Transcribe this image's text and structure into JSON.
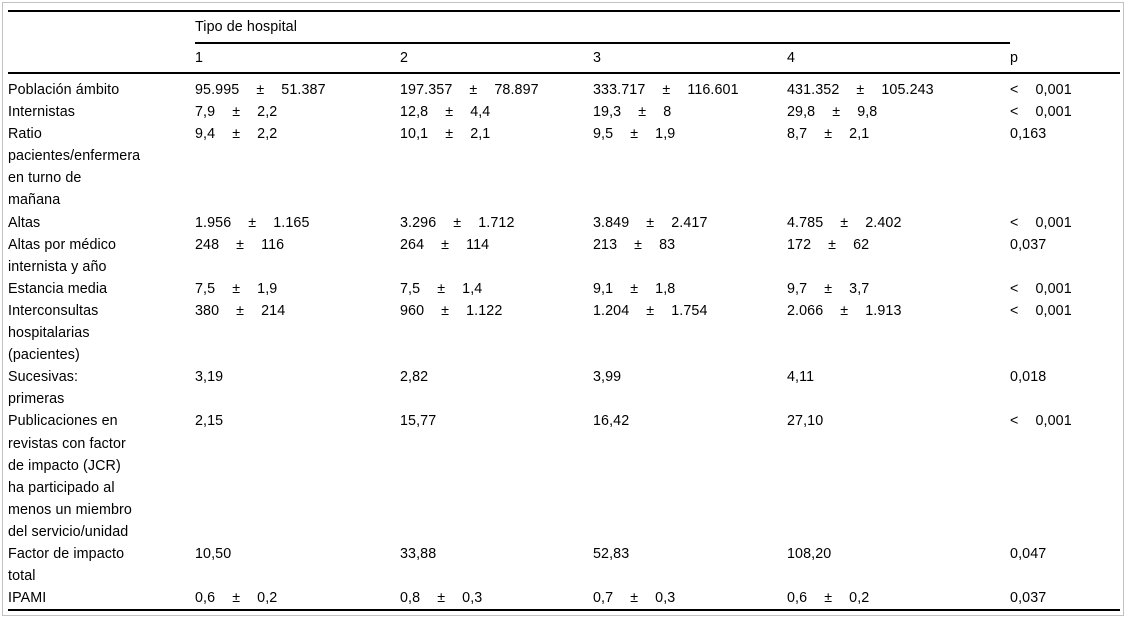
{
  "page": {
    "background": "#ffffff",
    "text_color": "#000000",
    "rule_color": "#000000",
    "frame_border_color": "#c2c2c2"
  },
  "table": {
    "spanner": "Tipo de hospital",
    "col_headers": [
      "1",
      "2",
      "3",
      "4"
    ],
    "p_header": "p",
    "pm": "±",
    "rows": [
      {
        "label_lines": [
          "Población ámbito"
        ],
        "cells": [
          [
            "95.995",
            "51.387"
          ],
          [
            "197.357",
            "78.897"
          ],
          [
            "333.717",
            "116.601"
          ],
          [
            "431.352",
            "105.243"
          ]
        ],
        "p": [
          "<",
          "0,001"
        ]
      },
      {
        "label_lines": [
          "Internistas"
        ],
        "cells": [
          [
            "7,9",
            "2,2"
          ],
          [
            "12,8",
            "4,4"
          ],
          [
            "19,3",
            "8"
          ],
          [
            "29,8",
            "9,8"
          ]
        ],
        "p": [
          "<",
          "0,001"
        ]
      },
      {
        "label_lines": [
          "Ratio",
          "pacientes/enfermera",
          "en turno de",
          "mañana"
        ],
        "cells": [
          [
            "9,4",
            "2,2"
          ],
          [
            "10,1",
            "2,1"
          ],
          [
            "9,5",
            "1,9"
          ],
          [
            "8,7",
            "2,1"
          ]
        ],
        "p": [
          "0,163"
        ]
      },
      {
        "label_lines": [
          "Altas"
        ],
        "cells": [
          [
            "1.956",
            "1.165"
          ],
          [
            "3.296",
            "1.712"
          ],
          [
            "3.849",
            "2.417"
          ],
          [
            "4.785",
            "2.402"
          ]
        ],
        "p": [
          "<",
          "0,001"
        ]
      },
      {
        "label_lines": [
          "Altas por médico",
          "internista y año"
        ],
        "cells": [
          [
            "248",
            "116"
          ],
          [
            "264",
            "114"
          ],
          [
            "213",
            "83"
          ],
          [
            "172",
            "62"
          ]
        ],
        "p": [
          "0,037"
        ]
      },
      {
        "label_lines": [
          "Estancia media"
        ],
        "cells": [
          [
            "7,5",
            "1,9"
          ],
          [
            "7,5",
            "1,4"
          ],
          [
            "9,1",
            "1,8"
          ],
          [
            "9,7",
            "3,7"
          ]
        ],
        "p": [
          "<",
          "0,001"
        ]
      },
      {
        "label_lines": [
          "Interconsultas",
          "hospitalarias",
          "(pacientes)"
        ],
        "cells": [
          [
            "380",
            "214"
          ],
          [
            "960",
            "1.122"
          ],
          [
            "1.204",
            "1.754"
          ],
          [
            "2.066",
            "1.913"
          ]
        ],
        "p": [
          "<",
          "0,001"
        ]
      },
      {
        "label_lines": [
          "Sucesivas:",
          "primeras"
        ],
        "cells": [
          [
            "3,19"
          ],
          [
            "2,82"
          ],
          [
            "3,99"
          ],
          [
            "4,11"
          ]
        ],
        "p": [
          "0,018"
        ]
      },
      {
        "label_lines": [
          "Publicaciones en",
          "revistas con factor",
          "de impacto (JCR)",
          "ha participado al",
          "menos un miembro",
          "del servicio/unidad"
        ],
        "cells": [
          [
            "2,15"
          ],
          [
            "15,77"
          ],
          [
            "16,42"
          ],
          [
            "27,10"
          ]
        ],
        "p": [
          "<",
          "0,001"
        ]
      },
      {
        "label_lines": [
          "Factor de impacto",
          "total"
        ],
        "cells": [
          [
            "10,50"
          ],
          [
            "33,88"
          ],
          [
            "52,83"
          ],
          [
            "108,20"
          ]
        ],
        "p": [
          "0,047"
        ]
      },
      {
        "label_lines": [
          "IPAMI"
        ],
        "cells": [
          [
            "0,6",
            "0,2"
          ],
          [
            "0,8",
            "0,3"
          ],
          [
            "0,7",
            "0,3"
          ],
          [
            "0,6",
            "0,2"
          ]
        ],
        "p": [
          "0,037"
        ]
      }
    ]
  }
}
